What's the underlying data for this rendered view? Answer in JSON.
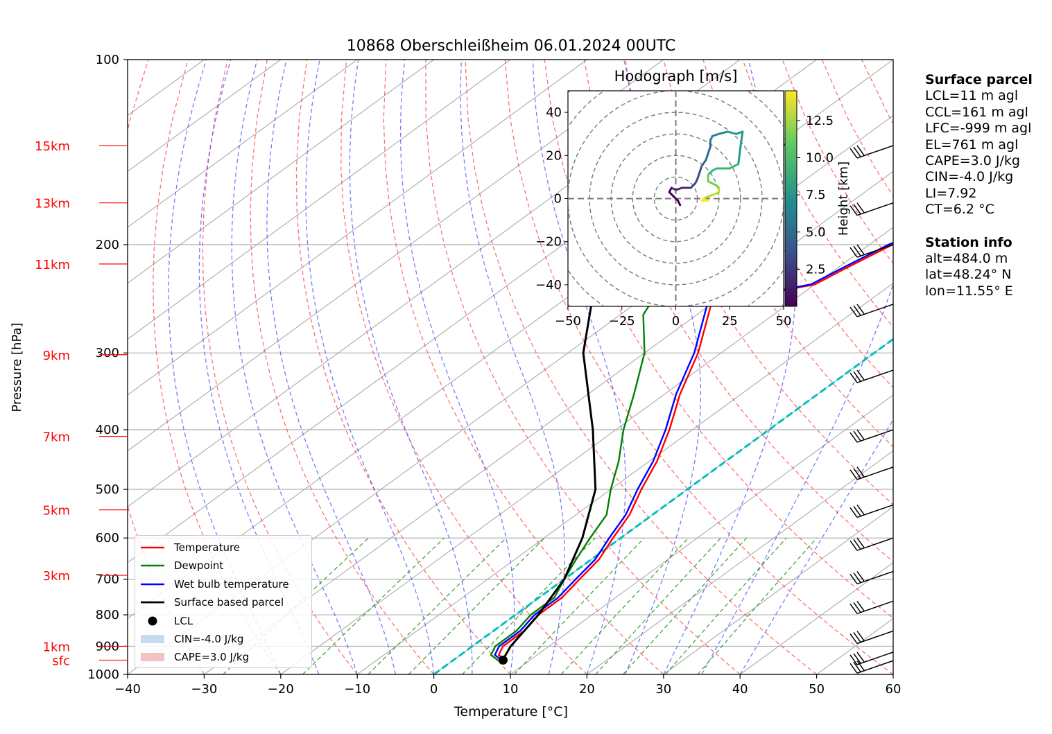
{
  "title": "10868 Oberschleißheim 06.01.2024 00UTC",
  "chart_data": {
    "type": "skew-t",
    "title": "10868 Oberschleißheim 06.01.2024 00UTC",
    "xlabel": "Temperature [°C]",
    "ylabel": "Pressure [hPa]",
    "xlim": [
      -40,
      60
    ],
    "ylim": [
      1000,
      100
    ],
    "x_ticks": [
      -40,
      -30,
      -20,
      -10,
      0,
      10,
      20,
      30,
      40,
      50,
      60
    ],
    "x_tick_labels": [
      "−40",
      "−30",
      "−20",
      "−10",
      "0",
      "10",
      "20",
      "30",
      "40",
      "50",
      "60"
    ],
    "pressure_ticks": [
      100,
      200,
      300,
      400,
      500,
      600,
      700,
      800,
      900,
      1000
    ],
    "pressure_tick_labels": [
      "100",
      "200",
      "300",
      "400",
      "500",
      "600",
      "700",
      "800",
      "900",
      "1000"
    ],
    "height_labels": [
      {
        "label": "15km",
        "p": 138
      },
      {
        "label": "13km",
        "p": 171
      },
      {
        "label": "11km",
        "p": 215
      },
      {
        "label": "9km",
        "p": 302
      },
      {
        "label": "7km",
        "p": 410
      },
      {
        "label": "5km",
        "p": 540
      },
      {
        "label": "3km",
        "p": 690
      },
      {
        "label": "1km",
        "p": 900
      },
      {
        "label": "sfc",
        "p": 948
      }
    ],
    "grid": true,
    "series": [
      {
        "name": "Temperature",
        "color": "#ff0000",
        "points": [
          [
            7,
            950
          ],
          [
            5,
            930
          ],
          [
            4,
            900
          ],
          [
            4,
            850
          ],
          [
            3,
            800
          ],
          [
            3,
            750
          ],
          [
            2,
            700
          ],
          [
            1,
            650
          ],
          [
            -1,
            600
          ],
          [
            -3,
            550
          ],
          [
            -6,
            500
          ],
          [
            -9,
            450
          ],
          [
            -13,
            400
          ],
          [
            -18,
            350
          ],
          [
            -23,
            300
          ],
          [
            -30,
            250
          ],
          [
            -20,
            232
          ],
          [
            -19,
            220
          ],
          [
            -17,
            200
          ],
          [
            -13,
            180
          ],
          [
            -10,
            165
          ],
          [
            -9,
            155
          ],
          [
            -5,
            145
          ],
          [
            -3,
            140
          ]
        ]
      },
      {
        "name": "Dewpoint",
        "color": "#008000",
        "points": [
          [
            6,
            950
          ],
          [
            4,
            930
          ],
          [
            3,
            900
          ],
          [
            3,
            850
          ],
          [
            2,
            800
          ],
          [
            2,
            750
          ],
          [
            0,
            700
          ],
          [
            -2,
            650
          ],
          [
            -4,
            600
          ],
          [
            -6,
            550
          ],
          [
            -10,
            500
          ],
          [
            -14,
            450
          ],
          [
            -19,
            400
          ],
          [
            -24,
            350
          ],
          [
            -30,
            300
          ],
          [
            -37,
            260
          ],
          [
            -38,
            250
          ],
          [
            -45,
            240
          ],
          [
            -45,
            225
          ],
          [
            -48,
            210
          ],
          [
            -51,
            190
          ],
          [
            -52,
            170
          ],
          [
            -51,
            160
          ],
          [
            -50,
            150
          ],
          [
            -49,
            140
          ],
          [
            -49,
            135
          ]
        ]
      },
      {
        "name": "Wet bulb temperature",
        "color": "#0000ff",
        "points": [
          [
            6.5,
            950
          ],
          [
            4.5,
            930
          ],
          [
            3.5,
            900
          ],
          [
            3.5,
            850
          ],
          [
            2.5,
            800
          ],
          [
            2.5,
            750
          ],
          [
            1.5,
            700
          ],
          [
            0.5,
            650
          ],
          [
            -1.5,
            600
          ],
          [
            -3.5,
            550
          ],
          [
            -6.5,
            500
          ],
          [
            -9.5,
            450
          ],
          [
            -13.5,
            400
          ],
          [
            -18.5,
            350
          ],
          [
            -23.5,
            300
          ],
          [
            -30.5,
            250
          ],
          [
            -20.5,
            232
          ],
          [
            -19.5,
            220
          ],
          [
            -17.5,
            200
          ],
          [
            -13.5,
            180
          ],
          [
            -10.5,
            165
          ],
          [
            -9.5,
            155
          ],
          [
            -5.5,
            145
          ],
          [
            -3.5,
            140
          ]
        ]
      },
      {
        "name": "Surface based parcel",
        "color": "#000000",
        "points": [
          [
            6.5,
            950
          ],
          [
            5,
            900
          ],
          [
            3,
            800
          ],
          [
            0,
            700
          ],
          [
            -5,
            600
          ],
          [
            -12,
            500
          ],
          [
            -23,
            400
          ],
          [
            -38,
            300
          ],
          [
            -55,
            200
          ],
          [
            -65,
            160
          ]
        ]
      }
    ],
    "lcl": {
      "name": "LCL",
      "t": 6.5,
      "p": 948
    },
    "cin_label": "CIN=-4.0 J/kg",
    "cape_label": "CAPE=3.0 J/kg",
    "zero_isotherm": {
      "color": "#00bfbf"
    },
    "hodograph": {
      "title": "Hodograph [m/s]",
      "xlim": [
        -50,
        50
      ],
      "ylim": [
        -50,
        50
      ],
      "x_tick_labels": [
        "−50",
        "−25",
        "0",
        "25",
        "50"
      ],
      "y_tick_labels": [
        "40",
        "20",
        "0",
        "−20",
        "−40"
      ],
      "colorbar_label": "Height [km]",
      "colorbar_ticks": [
        "12.5",
        "10.0",
        "7.5",
        "5.0",
        "2.5"
      ],
      "points": [
        [
          2,
          -3
        ],
        [
          1,
          -1
        ],
        [
          -1,
          1
        ],
        [
          -3,
          3
        ],
        [
          -2,
          5
        ],
        [
          0,
          4
        ],
        [
          3,
          5
        ],
        [
          5,
          5
        ],
        [
          7,
          5
        ],
        [
          9,
          7
        ],
        [
          10,
          9
        ],
        [
          11,
          12
        ],
        [
          12,
          15
        ],
        [
          14,
          18
        ],
        [
          15,
          21
        ],
        [
          16,
          24
        ],
        [
          16,
          27
        ],
        [
          17,
          29
        ],
        [
          20,
          30
        ],
        [
          24,
          31
        ],
        [
          28,
          30
        ],
        [
          31,
          31
        ],
        [
          30,
          24
        ],
        [
          29,
          16
        ],
        [
          25,
          14
        ],
        [
          19,
          14
        ],
        [
          17,
          13
        ],
        [
          15,
          11
        ],
        [
          15,
          8
        ],
        [
          17,
          7
        ],
        [
          19,
          6
        ],
        [
          20,
          5
        ],
        [
          20,
          3
        ],
        [
          18,
          2
        ],
        [
          15,
          1
        ],
        [
          13,
          0
        ],
        [
          12,
          -1
        ],
        [
          13,
          -1
        ],
        [
          15,
          -1
        ]
      ]
    }
  },
  "legend": [
    {
      "label": "Temperature",
      "color": "#ff0000",
      "kind": "line"
    },
    {
      "label": "Dewpoint",
      "color": "#008000",
      "kind": "line"
    },
    {
      "label": "Wet bulb temperature",
      "color": "#0000ff",
      "kind": "line"
    },
    {
      "label": "Surface based parcel",
      "color": "#000000",
      "kind": "line"
    },
    {
      "label": "LCL",
      "color": "#000000",
      "kind": "dot"
    },
    {
      "label": "CIN=-4.0 J/kg",
      "color": "#c6dbef",
      "kind": "patch"
    },
    {
      "label": "CAPE=3.0 J/kg",
      "color": "#f4c2c2",
      "kind": "patch"
    }
  ],
  "surface_parcel": {
    "header": "Surface parcel",
    "lines": [
      "LCL=11 m agl",
      "CCL=161 m agl",
      "LFC=-999 m agl",
      "EL=761 m agl",
      "CAPE=3.0 J/kg",
      "CIN=-4.0 J/kg",
      "LI=7.92",
      "CT=6.2 °C"
    ]
  },
  "station_info": {
    "header": "Station info",
    "lines": [
      "alt=484.0 m",
      "lat=48.24° N",
      "lon=11.55° E"
    ]
  }
}
